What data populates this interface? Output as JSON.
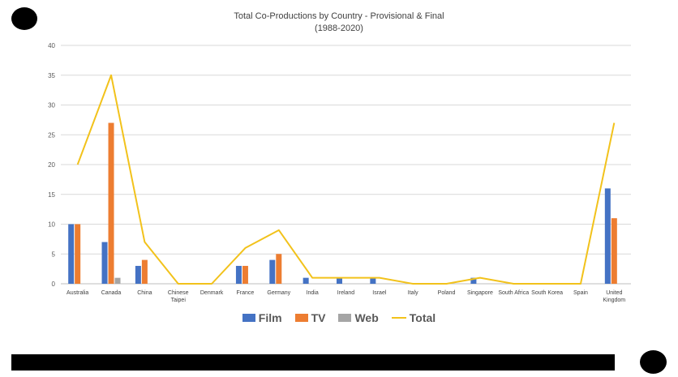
{
  "chart_data": {
    "type": "bar",
    "title": "Total Co-Productions by Country - Provisional & Final",
    "subtitle": "(1988-2020)",
    "categories": [
      [
        "Australia"
      ],
      [
        "Canada"
      ],
      [
        "China"
      ],
      [
        "Chinese",
        "Taipei"
      ],
      [
        "Denmark"
      ],
      [
        "France"
      ],
      [
        "Germany"
      ],
      [
        "India"
      ],
      [
        "Ireland"
      ],
      [
        "Israel"
      ],
      [
        "Italy"
      ],
      [
        "Poland"
      ],
      [
        "Singapore"
      ],
      [
        "South Africa"
      ],
      [
        "South Korea"
      ],
      [
        "Spain"
      ],
      [
        "United",
        "Kingdom"
      ]
    ],
    "series": [
      {
        "name": "Film",
        "kind": "bar",
        "values": [
          10,
          7,
          3,
          0,
          0,
          3,
          4,
          1,
          1,
          1,
          0,
          0,
          1,
          0,
          0,
          0,
          16
        ]
      },
      {
        "name": "TV",
        "kind": "bar",
        "values": [
          10,
          27,
          4,
          0,
          0,
          3,
          5,
          0,
          0,
          0,
          0,
          0,
          0,
          0,
          0,
          0,
          11
        ]
      },
      {
        "name": "Web",
        "kind": "bar",
        "values": [
          0,
          1,
          0,
          0,
          0,
          0,
          0,
          0,
          0,
          0,
          0,
          0,
          0,
          0,
          0,
          0,
          0
        ]
      },
      {
        "name": "Total",
        "kind": "line",
        "values": [
          20,
          35,
          7,
          0,
          0,
          6,
          9,
          1,
          1,
          1,
          0,
          0,
          1,
          0,
          0,
          0,
          27
        ]
      }
    ],
    "ylim": [
      0,
      40
    ],
    "yticks": [
      0,
      5,
      10,
      15,
      20,
      25,
      30,
      35,
      40
    ],
    "grid": true,
    "legend": "bottom-center",
    "colors": {
      "Film": "#4472c4",
      "TV": "#ed7d31",
      "Web": "#a5a5a5",
      "Total": "#f2c21b"
    }
  }
}
